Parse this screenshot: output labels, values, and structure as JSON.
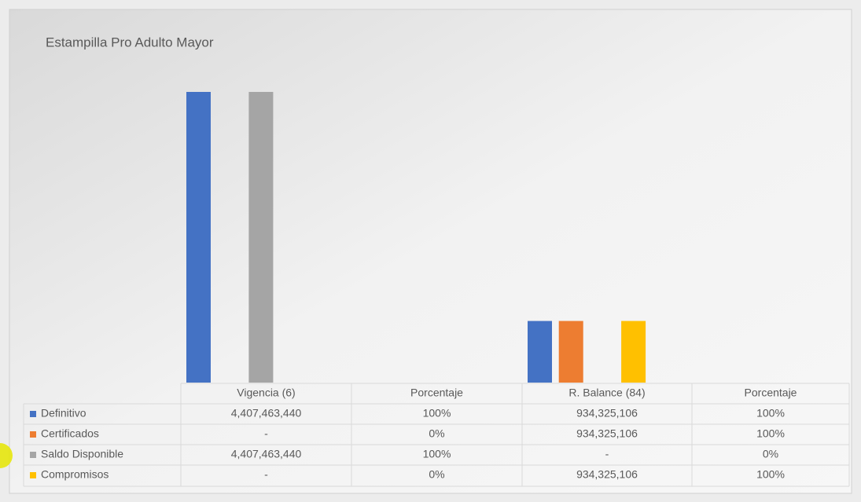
{
  "chart_data": {
    "type": "bar",
    "title": "Estampilla Pro Adulto Mayor",
    "categories": [
      "Vigencia (6)",
      "Porcentaje",
      "R. Balance (84)",
      "Porcentaje"
    ],
    "series": [
      {
        "name": "Definitivo",
        "color": "#4472c4",
        "values": [
          4407463440,
          1,
          934325106,
          1
        ],
        "value_labels": [
          "4,407,463,440",
          "100%",
          "934,325,106",
          "100%"
        ]
      },
      {
        "name": "Certificados",
        "color": "#ed7d31",
        "values": [
          0,
          0,
          934325106,
          1
        ],
        "value_labels": [
          "-",
          "0%",
          "934,325,106",
          "100%"
        ]
      },
      {
        "name": "Saldo Disponible",
        "color": "#a5a5a5",
        "values": [
          4407463440,
          1,
          0,
          0
        ],
        "value_labels": [
          "4,407,463,440",
          "100%",
          "-",
          "0%"
        ]
      },
      {
        "name": "Compromisos",
        "color": "#ffc000",
        "values": [
          0,
          0,
          934325106,
          1
        ],
        "value_labels": [
          "-",
          "0%",
          "934,325,106",
          "100%"
        ]
      }
    ]
  }
}
